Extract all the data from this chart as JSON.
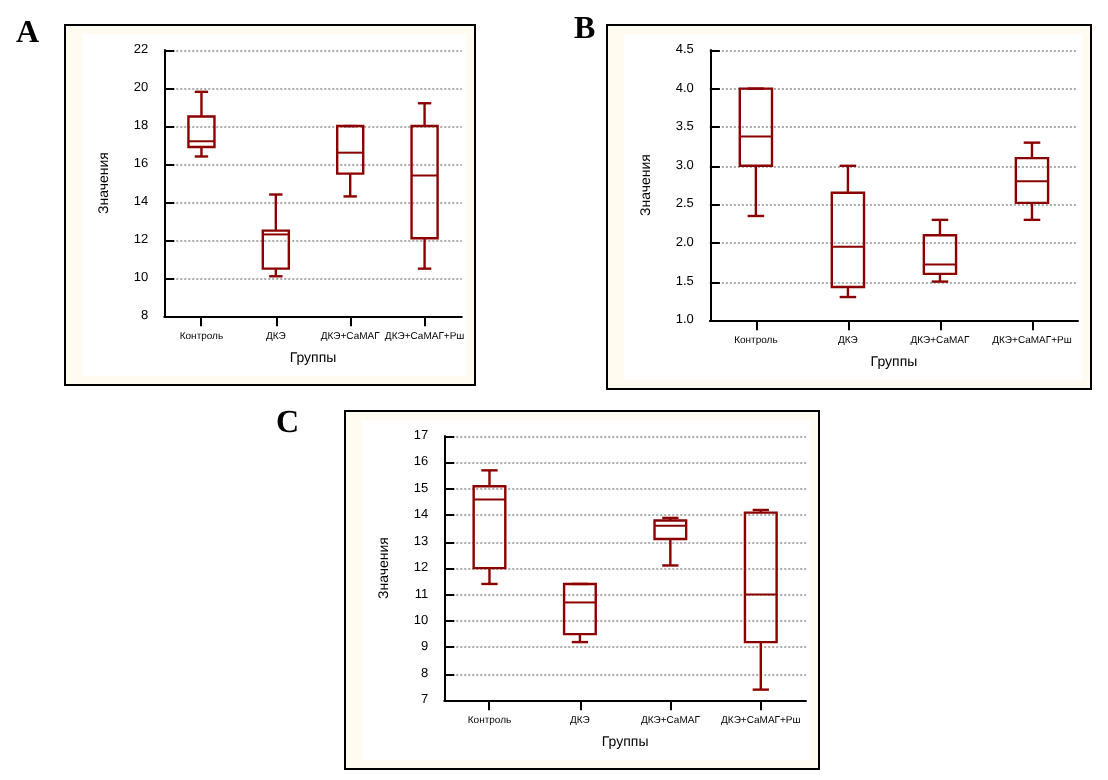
{
  "chart_data": [
    {
      "type": "box",
      "title": "A",
      "xlabel": "Группы",
      "ylabel": "Значения",
      "categories": [
        "Контроль",
        "ДКЭ",
        "ДКЭ+СаМАГ",
        "ДКЭ+СаМАГ+Рш"
      ],
      "color": "#8b0000",
      "ylim": [
        8,
        22
      ],
      "yticks": [
        8,
        10,
        12,
        14,
        16,
        18,
        20,
        22
      ],
      "grid": "y",
      "boxes": [
        {
          "low": 16.4,
          "q1": 16.9,
          "median": 17.2,
          "q3": 18.5,
          "high": 19.8
        },
        {
          "low": 10.1,
          "q1": 10.5,
          "median": 12.3,
          "q3": 12.5,
          "high": 14.4
        },
        {
          "low": 14.3,
          "q1": 15.5,
          "median": 16.6,
          "q3": 18,
          "high": 18
        },
        {
          "low": 10.5,
          "q1": 12.1,
          "median": 15.4,
          "q3": 18,
          "high": 19.2
        }
      ]
    },
    {
      "type": "box",
      "title": "B",
      "xlabel": "Группы",
      "ylabel": "Значения",
      "categories": [
        "Контроль",
        "ДКЭ",
        "ДКЭ+СаМАГ",
        "ДКЭ+СаМАГ+Рш"
      ],
      "color": "#8b0000",
      "ylim": [
        1,
        4.5
      ],
      "yticks": [
        {
          "value": 1,
          "label": "1.0"
        },
        {
          "value": 1.5,
          "label": "1.5"
        },
        {
          "value": 2,
          "label": "2.0"
        },
        {
          "value": 2.5,
          "label": "2.5"
        },
        {
          "value": 3,
          "label": "3.0"
        },
        {
          "value": 3.5,
          "label": "3.5"
        },
        {
          "value": 4,
          "label": "4.0"
        },
        {
          "value": 4.5,
          "label": "4.5"
        }
      ],
      "grid": "y",
      "boxes": [
        {
          "low": 2.35,
          "q1": 3,
          "median": 3.38,
          "q3": 4,
          "high": 4
        },
        {
          "low": 1.3,
          "q1": 1.43,
          "median": 1.95,
          "q3": 2.65,
          "high": 3
        },
        {
          "low": 1.5,
          "q1": 1.6,
          "median": 1.72,
          "q3": 2.1,
          "high": 2.3
        },
        {
          "low": 2.3,
          "q1": 2.52,
          "median": 2.8,
          "q3": 3.1,
          "high": 3.3
        }
      ]
    },
    {
      "type": "box",
      "title": "C",
      "xlabel": "Группы",
      "ylabel": "Значения",
      "categories": [
        "Контроль",
        "ДКЭ",
        "ДКЭ+СаМАГ",
        "ДКЭ+СаМАГ+Рш"
      ],
      "color": "#8b0000",
      "ylim": [
        7,
        17
      ],
      "yticks": [
        7,
        8,
        9,
        10,
        11,
        12,
        13,
        14,
        15,
        16,
        17
      ],
      "grid": "y",
      "boxes": [
        {
          "low": 11.4,
          "q1": 12,
          "median": 14.6,
          "q3": 15.1,
          "high": 15.7
        },
        {
          "low": 9.2,
          "q1": 9.5,
          "median": 10.7,
          "q3": 11.4,
          "high": 11.4
        },
        {
          "low": 12.1,
          "q1": 13.1,
          "median": 13.6,
          "q3": 13.8,
          "high": 13.9
        },
        {
          "low": 7.4,
          "q1": 9.2,
          "median": 11,
          "q3": 14.1,
          "high": 14.2
        }
      ]
    }
  ]
}
